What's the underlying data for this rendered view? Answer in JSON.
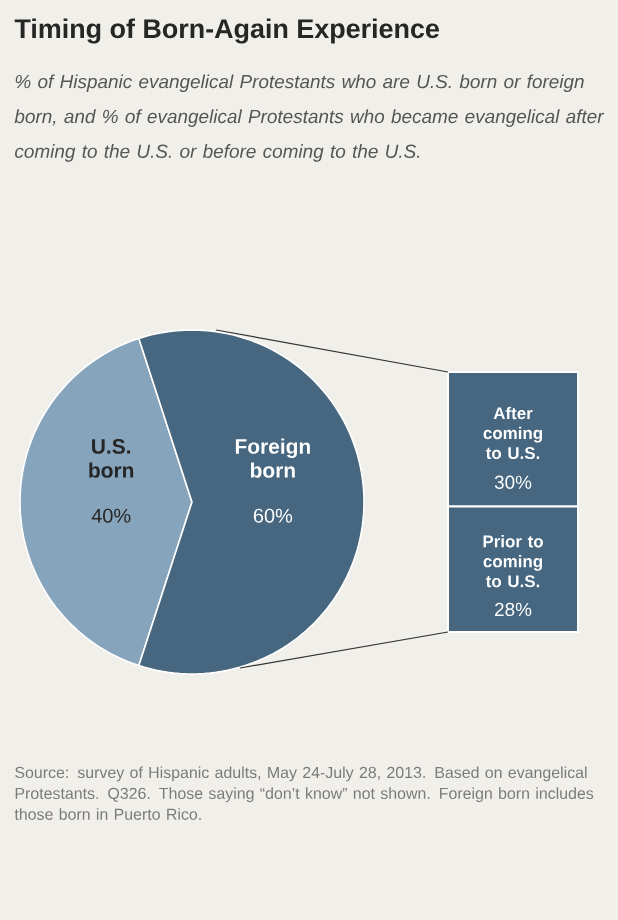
{
  "chart_data": [
    {
      "type": "pie",
      "title": "Timing of Born-Again Experience",
      "subtitle": "% of Hispanic evangelical Protestants who are U.S. born or foreign born, and % of evangelical Protestants who became evangelical after coming to the U.S. or before coming to the U.S.",
      "categories": [
        "U.S. born",
        "Foreign born"
      ],
      "values": [
        40,
        60
      ],
      "colors": [
        "#86a5bd",
        "#46677f"
      ],
      "value_labels": [
        "40%",
        "60%"
      ],
      "annotations": [
        "Source: survey of Hispanic adults, May 24-July 28, 2013. Based on evangelical Protestants. Q326. Those saying “don’t know” not shown. Foreign born includes those born in Puerto Rico."
      ]
    },
    {
      "type": "other",
      "categories": [
        "After coming to U.S.",
        "Prior to coming to U.S."
      ],
      "values": [
        30,
        28
      ],
      "color": "#46677f",
      "value_labels": [
        "30%",
        "28%"
      ]
    }
  ]
}
